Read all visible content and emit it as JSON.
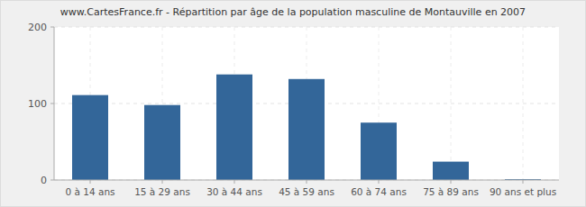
{
  "chart_data": {
    "type": "bar",
    "title": "www.CartesFrance.fr - Répartition par âge de la population masculine de Montauville en 2007",
    "categories": [
      "0 à 14 ans",
      "15 à 29 ans",
      "30 à 44 ans",
      "45 à 59 ans",
      "60 à 74 ans",
      "75 à 89 ans",
      "90 ans et plus"
    ],
    "values": [
      111,
      98,
      138,
      132,
      75,
      24,
      1
    ],
    "color": "#336699",
    "ylim": [
      0,
      200
    ],
    "yticks": [
      0,
      100,
      200
    ],
    "grid": true
  }
}
